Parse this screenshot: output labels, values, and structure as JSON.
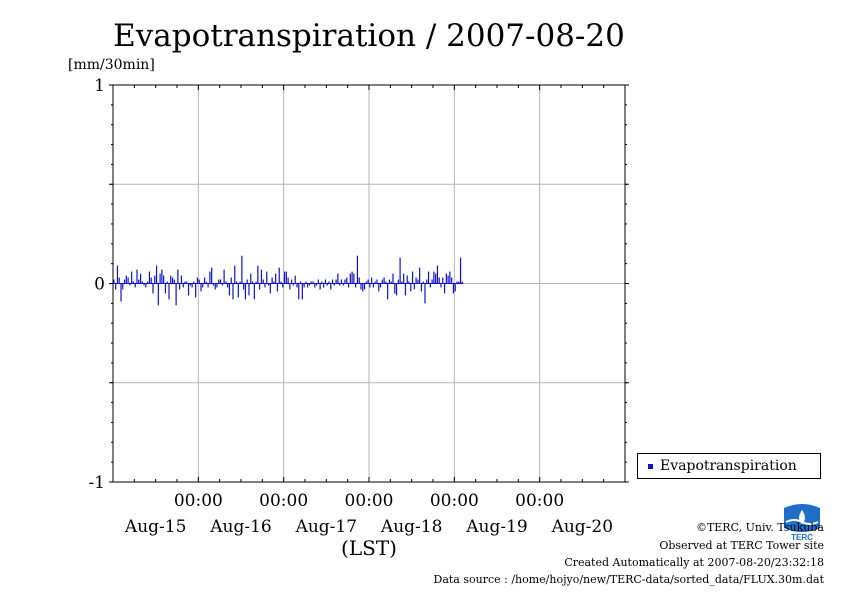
{
  "chart_data": {
    "type": "bar",
    "title": "Evapotranspiration / 2007-08-20",
    "ylabel": "[mm/30min]",
    "xlabel": "(LST)",
    "ylim": [
      -1,
      1
    ],
    "yticks": [
      "1",
      "0",
      "-1"
    ],
    "xtick_time_label": "00:00",
    "xtick_date_labels": [
      "Aug-15",
      "Aug-16",
      "Aug-17",
      "Aug-18",
      "Aug-19",
      "Aug-20"
    ],
    "x_range_days": [
      0,
      6
    ],
    "grid": true,
    "legend_position": "bottom-right outside",
    "series": [
      {
        "name": "Evapotranspiration",
        "color": "#1010c8",
        "start_day": 0.0,
        "step_days": 0.020833,
        "values": [
          0.02,
          -0.03,
          0.09,
          0.03,
          -0.09,
          -0.03,
          0.02,
          0.04,
          0.03,
          -0.01,
          0.06,
          0.01,
          -0.02,
          0.07,
          0.02,
          0.05,
          0.01,
          -0.01,
          -0.02,
          0.01,
          0.06,
          0.03,
          -0.05,
          0.04,
          0.09,
          -0.11,
          0.05,
          0.07,
          0.04,
          -0.05,
          0.01,
          -0.08,
          0.04,
          0.03,
          0.02,
          -0.11,
          0.07,
          -0.03,
          0.04,
          -0.02,
          0.01,
          0.01,
          -0.06,
          -0.01,
          -0.02,
          0.01,
          -0.07,
          0.03,
          0.02,
          -0.04,
          -0.02,
          0.03,
          0.01,
          -0.02,
          0.06,
          0.08,
          -0.01,
          -0.03,
          -0.02,
          0.02,
          0.02,
          -0.01,
          0.07,
          0.01,
          -0.02,
          -0.06,
          0.03,
          -0.08,
          0.09,
          0.01,
          -0.07,
          0.01,
          0.14,
          -0.03,
          -0.08,
          0.02,
          -0.06,
          0.05,
          0.01,
          -0.08,
          0.01,
          0.09,
          -0.03,
          0.07,
          0.02,
          -0.02,
          0.06,
          -0.01,
          -0.05,
          0.03,
          0.01,
          0.05,
          -0.04,
          0.08,
          0.01,
          -0.02,
          0.06,
          0.06,
          0.03,
          -0.03,
          0.02,
          -0.01,
          0.04,
          -0.02,
          -0.08,
          0.01,
          -0.08,
          -0.02,
          0.01,
          -0.02,
          -0.01,
          0.01,
          0.01,
          -0.02,
          -0.01,
          0.02,
          -0.03,
          0.01,
          -0.02,
          0.02,
          -0.01,
          0.01,
          -0.03,
          0.02,
          -0.01,
          0.02,
          0.05,
          -0.01,
          0.02,
          -0.01,
          0.02,
          0.03,
          -0.02,
          0.05,
          0.06,
          0.05,
          -0.02,
          0.14,
          0.03,
          -0.03,
          -0.04,
          -0.03,
          0.01,
          0.02,
          -0.02,
          0.03,
          -0.02,
          0.01,
          0.02,
          -0.04,
          -0.02,
          0.02,
          0.03,
          0.01,
          -0.08,
          0.02,
          0.01,
          0.05,
          -0.05,
          -0.06,
          0.02,
          0.13,
          0.01,
          0.05,
          -0.06,
          0.04,
          0.01,
          -0.04,
          0.06,
          -0.03,
          0.03,
          0.02,
          0.08,
          -0.04,
          0.01,
          -0.1,
          0.02,
          0.06,
          -0.02,
          0.02,
          0.06,
          0.05,
          0.09,
          0.03,
          -0.02,
          0.03,
          -0.05,
          0.05,
          0.04,
          0.06,
          0.03,
          -0.05,
          -0.04,
          0.01,
          0.01,
          0.13,
          0.01
        ]
      }
    ]
  },
  "footer": {
    "copyright": "©TERC, Univ. Tsukuba",
    "observed": "Observed at TERC Tower site",
    "created": "Created Automatically at 2007-08-20/23:32:18",
    "source": "Data source : /home/hojyo/new/TERC-data/sorted_data/FLUX.30m.dat"
  },
  "logo": {
    "text": "TERC",
    "icon": "terc-logo-icon"
  }
}
